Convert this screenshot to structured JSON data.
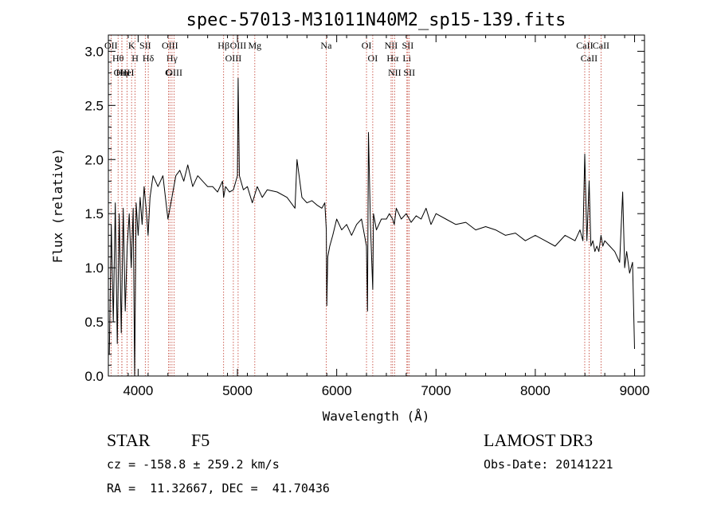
{
  "chart_data": {
    "type": "line",
    "title": "spec-57013-M31011N40M2_sp15-139.fits",
    "xlabel": "Wavelength (Å)",
    "ylabel": "Flux (relative)",
    "xlim": [
      3700,
      9100
    ],
    "ylim": [
      0.0,
      3.15
    ],
    "x_ticks": [
      4000,
      5000,
      6000,
      7000,
      8000,
      9000
    ],
    "y_ticks": [
      0.0,
      0.5,
      1.0,
      1.5,
      2.0,
      2.5,
      3.0
    ],
    "x_tick_labels": [
      "4000",
      "5000",
      "6000",
      "7000",
      "8000",
      "9000"
    ],
    "y_tick_labels": [
      "0.0",
      "0.5",
      "1.0",
      "1.5",
      "2.0",
      "2.5",
      "3.0"
    ],
    "grid": false,
    "series": [
      {
        "color": "#000000",
        "x": [
          3710,
          3730,
          3750,
          3770,
          3790,
          3810,
          3830,
          3850,
          3870,
          3890,
          3910,
          3930,
          3950,
          3965,
          3980,
          4000,
          4020,
          4040,
          4060,
          4080,
          4100,
          4120,
          4150,
          4200,
          4250,
          4300,
          4340,
          4380,
          4420,
          4460,
          4500,
          4550,
          4600,
          4650,
          4700,
          4750,
          4800,
          4850,
          4861,
          4880,
          4920,
          4960,
          5000,
          5007,
          5020,
          5060,
          5100,
          5150,
          5200,
          5250,
          5300,
          5400,
          5500,
          5580,
          5600,
          5650,
          5700,
          5750,
          5800,
          5850,
          5880,
          5895,
          5900,
          5910,
          5930,
          5960,
          6000,
          6050,
          6100,
          6150,
          6200,
          6250,
          6300,
          6310,
          6320,
          6340,
          6363,
          6370,
          6400,
          6450,
          6500,
          6530,
          6563,
          6580,
          6600,
          6650,
          6700,
          6750,
          6800,
          6850,
          6900,
          6950,
          7000,
          7100,
          7200,
          7300,
          7400,
          7500,
          7600,
          7700,
          7800,
          7900,
          8000,
          8100,
          8200,
          8300,
          8400,
          8450,
          8480,
          8498,
          8520,
          8542,
          8560,
          8580,
          8600,
          8620,
          8640,
          8662,
          8680,
          8700,
          8750,
          8800,
          8850,
          8880,
          8900,
          8920,
          8950,
          8980,
          9000
        ],
        "values": [
          0.2,
          1.4,
          0.5,
          1.6,
          0.3,
          1.5,
          0.4,
          1.55,
          0.6,
          1.2,
          1.5,
          1.0,
          1.55,
          0.0,
          1.6,
          1.3,
          1.65,
          1.4,
          1.75,
          1.55,
          1.3,
          1.65,
          1.85,
          1.75,
          1.85,
          1.45,
          1.65,
          1.85,
          1.9,
          1.8,
          1.95,
          1.75,
          1.85,
          1.8,
          1.75,
          1.75,
          1.7,
          1.8,
          1.65,
          1.75,
          1.7,
          1.72,
          1.85,
          2.75,
          1.85,
          1.72,
          1.75,
          1.6,
          1.75,
          1.65,
          1.72,
          1.7,
          1.65,
          1.55,
          2.0,
          1.65,
          1.6,
          1.62,
          1.58,
          1.55,
          1.6,
          1.35,
          0.65,
          1.1,
          1.2,
          1.3,
          1.45,
          1.35,
          1.4,
          1.3,
          1.4,
          1.45,
          1.2,
          0.6,
          2.25,
          1.4,
          0.8,
          1.5,
          1.35,
          1.45,
          1.45,
          1.5,
          1.45,
          1.4,
          1.55,
          1.45,
          1.5,
          1.42,
          1.48,
          1.45,
          1.55,
          1.4,
          1.5,
          1.45,
          1.4,
          1.42,
          1.35,
          1.38,
          1.35,
          1.3,
          1.32,
          1.25,
          1.3,
          1.25,
          1.2,
          1.3,
          1.25,
          1.35,
          1.25,
          2.05,
          1.25,
          1.8,
          1.2,
          1.25,
          1.15,
          1.2,
          1.15,
          1.3,
          1.2,
          1.25,
          1.2,
          1.15,
          1.05,
          1.7,
          1.0,
          1.15,
          0.95,
          1.05,
          0.25
        ]
      }
    ],
    "line_markers": [
      {
        "label": "OII",
        "wavelength": 3727
      },
      {
        "label": "Hθ",
        "wavelength": 3798
      },
      {
        "label": "OIII",
        "wavelength": 3836
      },
      {
        "label": "Hη",
        "wavelength": 3836
      },
      {
        "label": "K",
        "wavelength": 3934
      },
      {
        "label": "HeI",
        "wavelength": 3889
      },
      {
        "label": "H",
        "wavelength": 3969
      },
      {
        "label": "SII",
        "wavelength": 4072
      },
      {
        "label": "Hδ",
        "wavelength": 4102
      },
      {
        "label": "OIII",
        "wavelength": 4320
      },
      {
        "label": "Hγ",
        "wavelength": 4341
      },
      {
        "label": "G",
        "wavelength": 4305
      },
      {
        "label": "OIII",
        "wavelength": 4363
      },
      {
        "label": "Hβ",
        "wavelength": 4861
      },
      {
        "label": "OIII",
        "wavelength": 4959
      },
      {
        "label": "OIII",
        "wavelength": 5007
      },
      {
        "label": "Mg",
        "wavelength": 5175
      },
      {
        "label": "Na",
        "wavelength": 5894
      },
      {
        "label": "OI",
        "wavelength": 6300
      },
      {
        "label": "OI",
        "wavelength": 6363
      },
      {
        "label": "NII",
        "wavelength": 6548
      },
      {
        "label": "Hα",
        "wavelength": 6563
      },
      {
        "label": "NII",
        "wavelength": 6583
      },
      {
        "label": "SII",
        "wavelength": 6716
      },
      {
        "label": "Li",
        "wavelength": 6707
      },
      {
        "label": "SII",
        "wavelength": 6731
      },
      {
        "label": "CaII",
        "wavelength": 8498
      },
      {
        "label": "CaII",
        "wavelength": 8542
      },
      {
        "label": "CaII",
        "wavelength": 8662
      }
    ]
  },
  "info": {
    "object_class": "STAR",
    "subclass": "F5",
    "survey": "LAMOST DR3",
    "redshift": "cz = -158.8 ± 259.2 km/s",
    "obs_date": "Obs-Date: 20141221",
    "coords": "RA =  11.32667, DEC =  41.70436"
  }
}
